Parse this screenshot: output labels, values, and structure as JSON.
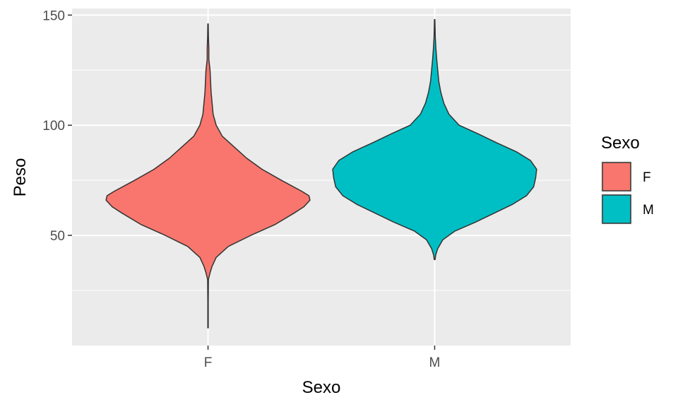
{
  "chart_data": {
    "type": "violin",
    "xlabel": "Sexo",
    "ylabel": "Peso",
    "categories": [
      "F",
      "M"
    ],
    "ylim": [
      0,
      153
    ],
    "yticks": [
      50,
      100,
      150
    ],
    "grid": true,
    "colors": {
      "F": "#F8766D",
      "M": "#00BFC4",
      "panel": "#EBEBEB",
      "grid": "#FFFFFF",
      "outline": "#333333"
    },
    "legend": {
      "title": "Sexo",
      "position": "right",
      "items": [
        {
          "label": "F",
          "color": "#F8766D"
        },
        {
          "label": "M",
          "color": "#00BFC4"
        }
      ]
    },
    "series": [
      {
        "category": "F",
        "min": 8,
        "max": 146,
        "density": [
          [
            8,
            0.002
          ],
          [
            20,
            0.002
          ],
          [
            30,
            0.004
          ],
          [
            33,
            0.02
          ],
          [
            36,
            0.04
          ],
          [
            40,
            0.08
          ],
          [
            45,
            0.2
          ],
          [
            50,
            0.42
          ],
          [
            55,
            0.66
          ],
          [
            60,
            0.84
          ],
          [
            63,
            0.94
          ],
          [
            66,
            1.0
          ],
          [
            68,
            0.99
          ],
          [
            70,
            0.92
          ],
          [
            75,
            0.72
          ],
          [
            80,
            0.53
          ],
          [
            85,
            0.38
          ],
          [
            90,
            0.26
          ],
          [
            95,
            0.14
          ],
          [
            100,
            0.08
          ],
          [
            105,
            0.05
          ],
          [
            110,
            0.04
          ],
          [
            115,
            0.03
          ],
          [
            120,
            0.025
          ],
          [
            125,
            0.02
          ],
          [
            130,
            0.008
          ],
          [
            135,
            0.008
          ],
          [
            140,
            0.004
          ],
          [
            146,
            0.002
          ]
        ]
      },
      {
        "category": "M",
        "min": 39,
        "max": 148,
        "density": [
          [
            39,
            0.004
          ],
          [
            41,
            0.01
          ],
          [
            44,
            0.03
          ],
          [
            48,
            0.08
          ],
          [
            52,
            0.2
          ],
          [
            56,
            0.4
          ],
          [
            60,
            0.58
          ],
          [
            64,
            0.76
          ],
          [
            68,
            0.9
          ],
          [
            72,
            0.97
          ],
          [
            76,
            0.99
          ],
          [
            80,
            1.0
          ],
          [
            84,
            0.94
          ],
          [
            88,
            0.8
          ],
          [
            92,
            0.61
          ],
          [
            96,
            0.43
          ],
          [
            100,
            0.24
          ],
          [
            105,
            0.14
          ],
          [
            110,
            0.09
          ],
          [
            115,
            0.06
          ],
          [
            120,
            0.04
          ],
          [
            125,
            0.03
          ],
          [
            130,
            0.02
          ],
          [
            135,
            0.012
          ],
          [
            140,
            0.006
          ],
          [
            148,
            0.002
          ]
        ]
      }
    ]
  }
}
